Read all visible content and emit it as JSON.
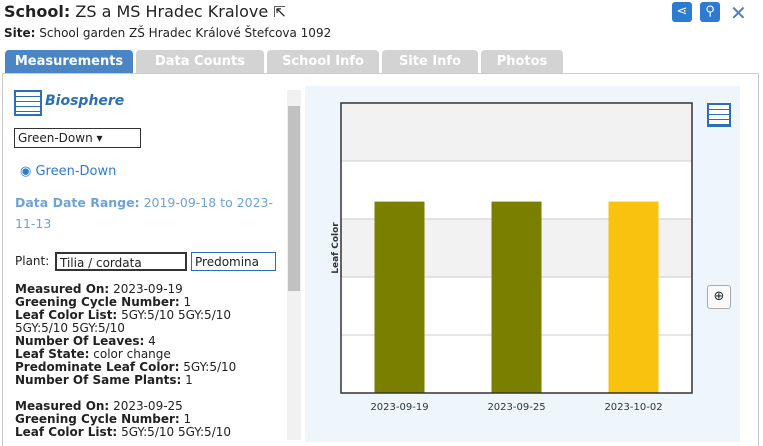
{
  "header": {
    "school_label": "School:",
    "school_name": "ZS a MS Hradec Kralove",
    "site_label": "Site:",
    "site_name": "School garden ZŠ Hradec Králové Štefcova 1092"
  },
  "tabs": [
    "Measurements",
    "Data Counts",
    "School Info",
    "Site Info",
    "Photos"
  ],
  "panel": {
    "protocol": "Biosphere",
    "select": "Green-Down",
    "radio": "Green-Down",
    "date_range_label": "Data Date Range:",
    "date_range": "2019-09-18 to 2023-11-13",
    "plant_label": "Plant:",
    "plant_select": "Tilia / cordata",
    "color_select": "Predomina",
    "records": [
      {
        "fields": [
          {
            "label": "Measured On:",
            "value": "2023-09-19"
          },
          {
            "label": "Greening Cycle Number:",
            "value": "1"
          },
          {
            "label": "Leaf Color List:",
            "value": "5GY:5/10 5GY:5/10 5GY:5/10 5GY:5/10"
          },
          {
            "label": "Number Of Leaves:",
            "value": "4"
          },
          {
            "label": "Leaf State:",
            "value": "color change"
          },
          {
            "label": "Predominate Leaf Color:",
            "value": "5GY:5/10"
          },
          {
            "label": "Number Of Same Plants:",
            "value": "1"
          }
        ]
      },
      {
        "fields": [
          {
            "label": "Measured On:",
            "value": "2023-09-25"
          },
          {
            "label": "Greening Cycle Number:",
            "value": "1"
          },
          {
            "label": "Leaf Color List:",
            "value": "5GY:5/10 5GY:5/10"
          }
        ]
      }
    ]
  },
  "chart_data": {
    "type": "bar",
    "y_label": "Leaf Color",
    "categories": [
      "2023-09-19",
      "2023-09-25",
      "2023-10-02"
    ],
    "values": [
      3.3,
      3.3,
      3.3
    ],
    "colors": [
      "#7b7f00",
      "#7b7f00",
      "#f9c20e"
    ],
    "ylim": [
      0,
      5
    ],
    "grid_lines": [
      1,
      2,
      3,
      4
    ],
    "grid_color": "#cccccc"
  }
}
